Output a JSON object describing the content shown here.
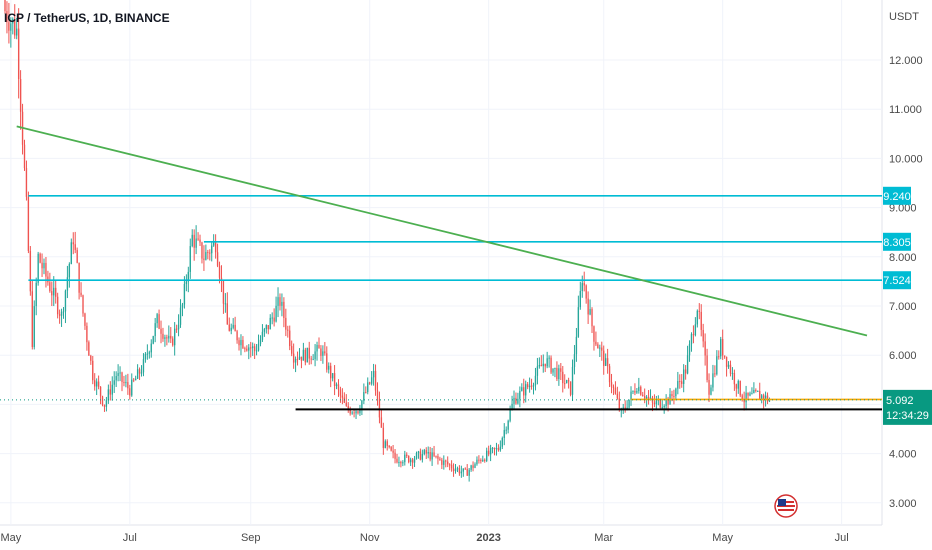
{
  "header": {
    "title": "ICP / TetherUS, 1D, BINANCE"
  },
  "colors": {
    "up": "#26a69a",
    "down": "#ef5350",
    "resistance": "#00bcd4",
    "trendline": "#4caf50",
    "support": "#000000",
    "orange": "#f7a600",
    "last": "#089981"
  },
  "chart_data": {
    "type": "candlestick",
    "quote_currency": "USDT",
    "ylim": [
      2.7,
      13.2
    ],
    "y_ticks": [
      "12.000",
      "11.000",
      "10.000",
      "9.000",
      "8.000",
      "7.000",
      "6.000",
      "5.000",
      "4.000",
      "3.000"
    ],
    "y_tick_values": [
      12,
      11,
      10,
      9,
      8,
      7,
      6,
      5,
      4,
      3
    ],
    "x_ticks": [
      "May",
      "Jul",
      "Sep",
      "Nov",
      "2023",
      "Mar",
      "May",
      "Jul"
    ],
    "x_tick_dates": [
      "2022-05-01",
      "2022-07-01",
      "2022-09-01",
      "2022-11-01",
      "2023-01-01",
      "2023-03-01",
      "2023-05-01",
      "2023-07-01"
    ],
    "x_range": [
      "2022-04-28",
      "2023-07-14"
    ],
    "close_points": [
      [
        "2022-04-28",
        13.0
      ],
      [
        "2022-05-04",
        12.6
      ],
      [
        "2022-05-09",
        9.0
      ],
      [
        "2022-05-12",
        6.3
      ],
      [
        "2022-05-15",
        8.0
      ],
      [
        "2022-05-20",
        7.5
      ],
      [
        "2022-05-27",
        6.8
      ],
      [
        "2022-06-02",
        8.4
      ],
      [
        "2022-06-06",
        7.1
      ],
      [
        "2022-06-12",
        5.6
      ],
      [
        "2022-06-18",
        5.0
      ],
      [
        "2022-06-24",
        5.6
      ],
      [
        "2022-07-01",
        5.3
      ],
      [
        "2022-07-08",
        5.8
      ],
      [
        "2022-07-15",
        6.7
      ],
      [
        "2022-07-22",
        6.2
      ],
      [
        "2022-07-28",
        7.0
      ],
      [
        "2022-08-02",
        8.4
      ],
      [
        "2022-08-08",
        8.0
      ],
      [
        "2022-08-14",
        8.3
      ],
      [
        "2022-08-20",
        6.6
      ],
      [
        "2022-08-27",
        6.3
      ],
      [
        "2022-09-03",
        6.1
      ],
      [
        "2022-09-10",
        6.6
      ],
      [
        "2022-09-16",
        7.1
      ],
      [
        "2022-09-23",
        6.0
      ],
      [
        "2022-09-30",
        6.0
      ],
      [
        "2022-10-07",
        6.1
      ],
      [
        "2022-10-12",
        5.6
      ],
      [
        "2022-10-20",
        4.9
      ],
      [
        "2022-10-26",
        4.9
      ],
      [
        "2022-11-03",
        5.6
      ],
      [
        "2022-11-08",
        4.2
      ],
      [
        "2022-11-14",
        3.9
      ],
      [
        "2022-11-22",
        3.9
      ],
      [
        "2022-11-30",
        4.0
      ],
      [
        "2022-12-10",
        3.8
      ],
      [
        "2022-12-20",
        3.6
      ],
      [
        "2022-12-28",
        3.9
      ],
      [
        "2023-01-06",
        4.1
      ],
      [
        "2023-01-14",
        5.1
      ],
      [
        "2023-01-22",
        5.4
      ],
      [
        "2023-01-30",
        5.9
      ],
      [
        "2023-02-06",
        5.6
      ],
      [
        "2023-02-12",
        5.3
      ],
      [
        "2023-02-18",
        7.6
      ],
      [
        "2023-02-24",
        6.4
      ],
      [
        "2023-03-02",
        5.8
      ],
      [
        "2023-03-10",
        4.8
      ],
      [
        "2023-03-18",
        5.4
      ],
      [
        "2023-03-26",
        5.0
      ],
      [
        "2023-04-04",
        5.1
      ],
      [
        "2023-04-12",
        5.7
      ],
      [
        "2023-04-18",
        7.0
      ],
      [
        "2023-04-24",
        5.3
      ],
      [
        "2023-04-30",
        6.2
      ],
      [
        "2023-05-06",
        5.6
      ],
      [
        "2023-05-12",
        5.1
      ],
      [
        "2023-05-19",
        5.2
      ],
      [
        "2023-05-25",
        5.09
      ]
    ],
    "horizontal_levels": [
      {
        "label": "9.240",
        "value": 9.24,
        "from": "2022-05-10",
        "role": "resistance"
      },
      {
        "label": "8.305",
        "value": 8.305,
        "from": "2022-08-08",
        "role": "resistance"
      },
      {
        "label": "7.524",
        "value": 7.524,
        "from": "2022-05-10",
        "role": "resistance"
      },
      {
        "label": "5.100",
        "value": 5.1,
        "from": "2023-03-15",
        "role": "orange"
      },
      {
        "label": "4.900",
        "value": 4.9,
        "from": "2022-09-24",
        "role": "support"
      }
    ],
    "trendline": {
      "from": [
        "2022-05-04",
        10.65
      ],
      "to": [
        "2023-07-14",
        6.4
      ]
    },
    "last_price": {
      "label": "5.092",
      "value": 5.092,
      "countdown": "12:34:29"
    }
  }
}
